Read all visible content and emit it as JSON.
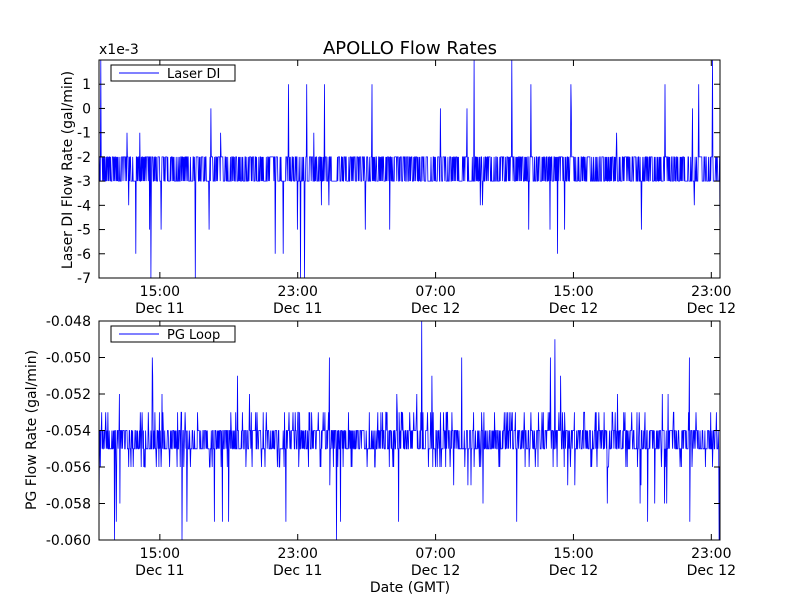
{
  "title": "APOLLO Flow Rates",
  "xlabel": "Date (GMT)",
  "colors": {
    "series": "#0000ff",
    "axes": "#000000",
    "background": "#ffffff"
  },
  "chart_data": [
    {
      "type": "line",
      "title": "APOLLO Flow Rates",
      "ylabel": "Laser DI Flow Rate (gal/min)",
      "offset_label": "x1e-3",
      "xlabel": "",
      "series": [
        {
          "name": "Laser DI",
          "unit_scale": 0.001,
          "baseline": -2.5,
          "spread": 0.9,
          "min": -7,
          "max": 2,
          "low_tail": 0.02,
          "high_tail": 0.02
        }
      ],
      "ylim": [
        -7,
        2
      ],
      "yticks": [
        -7,
        -6,
        -5,
        -4,
        -3,
        -2,
        -1,
        0,
        1
      ],
      "ytick_labels": [
        "-7",
        "-6",
        "-5",
        "-4",
        "-3",
        "-2",
        "-1",
        "0",
        "1"
      ],
      "xticks": [
        {
          "time": "15:00",
          "date": "Dec 11"
        },
        {
          "time": "23:00",
          "date": "Dec 11"
        },
        {
          "time": "07:00",
          "date": "Dec 12"
        },
        {
          "time": "15:00",
          "date": "Dec 12"
        },
        {
          "time": "23:00",
          "date": "Dec 12"
        }
      ],
      "xrange_hours": [
        "Dec 11 11:25",
        "Dec 13 00:20"
      ],
      "legend": {
        "label": "Laser DI",
        "placement": "top-left"
      },
      "grid": false
    },
    {
      "type": "line",
      "ylabel": "PG Flow Rate (gal/min)",
      "xlabel": "Date (GMT)",
      "series": [
        {
          "name": "PG Loop",
          "baseline": -0.0545,
          "spread": 0.0012,
          "min": -0.06,
          "max": -0.048,
          "low_tail": 0.02,
          "high_tail": 0.02
        }
      ],
      "ylim": [
        -0.06,
        -0.048
      ],
      "yticks": [
        -0.06,
        -0.058,
        -0.056,
        -0.054,
        -0.052,
        -0.05,
        -0.048
      ],
      "ytick_labels": [
        "-0.060",
        "-0.058",
        "-0.056",
        "-0.054",
        "-0.052",
        "-0.050",
        "-0.048"
      ],
      "xticks": [
        {
          "time": "15:00",
          "date": "Dec 11"
        },
        {
          "time": "23:00",
          "date": "Dec 11"
        },
        {
          "time": "07:00",
          "date": "Dec 12"
        },
        {
          "time": "15:00",
          "date": "Dec 12"
        },
        {
          "time": "23:00",
          "date": "Dec 12"
        }
      ],
      "legend": {
        "label": "PG Loop",
        "placement": "top-left"
      },
      "grid": false
    }
  ]
}
